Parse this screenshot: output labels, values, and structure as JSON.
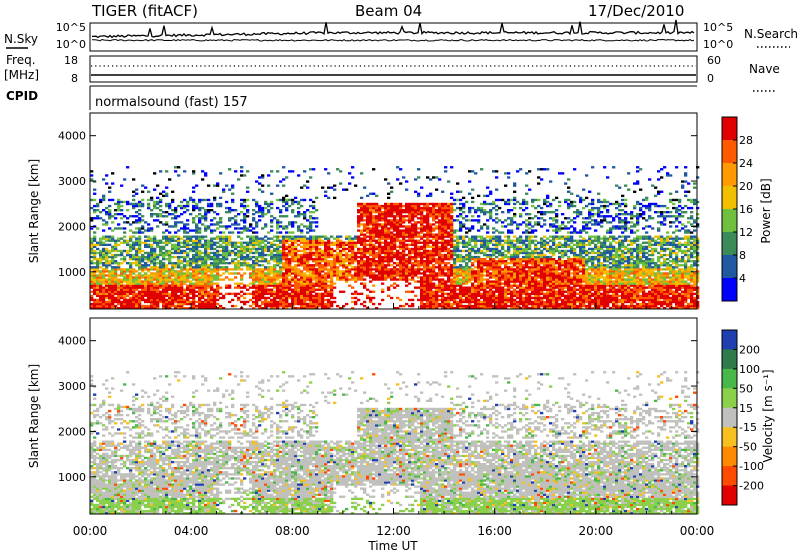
{
  "header": {
    "radar": "TIGER (fitACF)",
    "beam": "Beam 04",
    "date": "17/Dec/2010"
  },
  "noise_panel": {
    "left_label": "N.Sky",
    "right_label": "N.Search",
    "left_ticks": [
      "10^5",
      "10^0"
    ],
    "right_ticks": [
      "10^5",
      "10^0"
    ]
  },
  "freq_panel": {
    "left_label_1": "Freq.",
    "left_label_2": "[MHz]",
    "right_label": "Nave",
    "left_ticks": [
      "18",
      "8"
    ],
    "right_ticks": [
      "60",
      "0"
    ]
  },
  "cpid": {
    "label": "CPID",
    "mode": "normalsound (fast) 157"
  },
  "chart_data": [
    {
      "type": "heatmap",
      "name": "power",
      "ylabel": "Slant Range [km]",
      "yticks": [
        "4000",
        "3000",
        "2000",
        "1000"
      ],
      "ylim": [
        180,
        4500
      ],
      "xlim_hours": [
        0,
        24
      ],
      "colorbar": {
        "label": "Power [dB]",
        "ticks": [
          "28",
          "24",
          "20",
          "16",
          "12",
          "8",
          "4"
        ],
        "colors": [
          "#e00000",
          "#ff5a00",
          "#ff9a00",
          "#f0c000",
          "#70c040",
          "#3a8a5a",
          "#1f5aa0",
          "#0000ff"
        ]
      }
    },
    {
      "type": "heatmap",
      "name": "velocity",
      "ylabel": "Slant Range [km]",
      "yticks": [
        "4000",
        "3000",
        "2000",
        "1000"
      ],
      "ylim": [
        180,
        4500
      ],
      "xlim_hours": [
        0,
        24
      ],
      "colorbar": {
        "label": "Velocity [m s⁻¹]",
        "ticks": [
          "200",
          "100",
          "50",
          "15",
          "-15",
          "-50",
          "-100",
          "-200"
        ],
        "colors": [
          "#1f3fb0",
          "#2f7a4a",
          "#49b84a",
          "#8ad04a",
          "#c0c0bc",
          "#f5c020",
          "#ff8a00",
          "#ff4a00",
          "#e00000"
        ]
      }
    }
  ],
  "xaxis": {
    "label": "Time UT",
    "ticks": [
      "00:00",
      "04:00",
      "08:00",
      "12:00",
      "16:00",
      "20:00",
      "00:00"
    ]
  }
}
